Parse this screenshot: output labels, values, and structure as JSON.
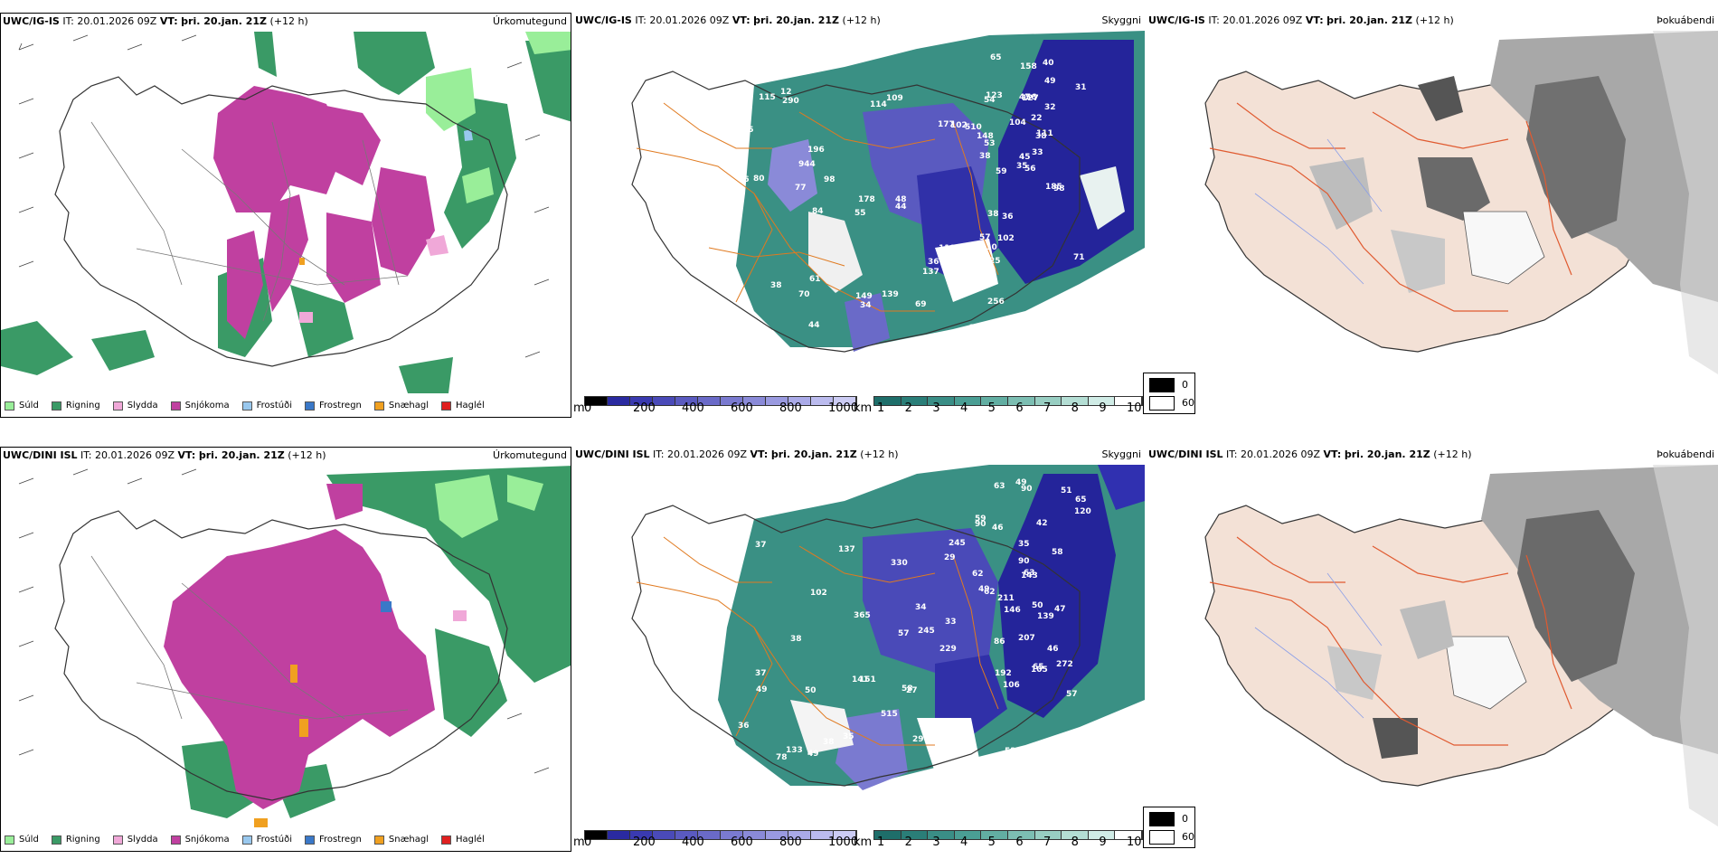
{
  "rows": [
    {
      "model_label": "UWC/IG-IS",
      "it_text": "IT: 20.01.2026 09Z",
      "vt_label": "VT:",
      "vt_text": "þri. 20.jan. 21Z",
      "lead_text": "(+12 h)",
      "panel_titles": [
        "Úrkomutegund",
        "Skyggni",
        "Þokuábendi"
      ],
      "visibility_labels": [
        "56",
        "54",
        "45",
        "57",
        "38",
        "36",
        "40",
        "56",
        "49",
        "33",
        "65",
        "71",
        "53",
        "31",
        "35",
        "32",
        "25",
        "47",
        "22",
        "38",
        "104",
        "110",
        "102",
        "127",
        "111",
        "98",
        "123",
        "158",
        "148",
        "185",
        "59",
        "55",
        "149",
        "178",
        "196",
        "177",
        "61",
        "216",
        "256",
        "119",
        "109",
        "98",
        "77",
        "137",
        "44",
        "46",
        "48",
        "42",
        "34",
        "44",
        "38",
        "38",
        "55",
        "36",
        "69",
        "70",
        "290",
        "115",
        "139",
        "510",
        "114",
        "84",
        "80",
        "944",
        "102",
        "12"
      ]
    },
    {
      "model_label": "UWC/DINI ISL",
      "it_text": "IT: 20.01.2026 09Z",
      "vt_label": "VT:",
      "vt_text": "þri. 20.jan. 21Z",
      "lead_text": "(+12 h)",
      "panel_titles": [
        "Úrkomutegund",
        "Skyggni",
        "Þokuábendi"
      ],
      "visibility_labels": [
        "62",
        "90",
        "58",
        "65",
        "59",
        "57",
        "62",
        "42",
        "35",
        "51",
        "63",
        "47",
        "49",
        "90",
        "46",
        "86",
        "65",
        "49",
        "50",
        "207",
        "46",
        "272",
        "120",
        "90",
        "192",
        "143",
        "139",
        "63",
        "106",
        "105",
        "37",
        "53",
        "57",
        "78",
        "49",
        "49",
        "33",
        "37",
        "38",
        "102",
        "515",
        "245",
        "527",
        "146",
        "151",
        "50",
        "29",
        "36",
        "35",
        "38",
        "34",
        "80",
        "27",
        "229",
        "290",
        "137",
        "58",
        "365",
        "245",
        "330",
        "141",
        "133",
        "211"
      ]
    }
  ],
  "precip_legend": [
    {
      "label": "Súld",
      "color": "#99ee99"
    },
    {
      "label": "Rigning",
      "color": "#3a9a66"
    },
    {
      "label": "Slydda",
      "color": "#f0a8d8"
    },
    {
      "label": "Snjókoma",
      "color": "#c040a0"
    },
    {
      "label": "Frostúði",
      "color": "#99c8ee"
    },
    {
      "label": "Frostregn",
      "color": "#3a78c8"
    },
    {
      "label": "Snæhagl",
      "color": "#f0a020"
    },
    {
      "label": "Haglél",
      "color": "#e02020"
    }
  ],
  "ceiling_colorbar": {
    "unit": "m",
    "ticks": [
      "0",
      "200",
      "400",
      "600",
      "800",
      "1000"
    ],
    "colors": [
      "#000000",
      "#2a2aa0",
      "#3a3ab0",
      "#4a4ab8",
      "#5a5ac0",
      "#6a6ac8",
      "#7a7ad0",
      "#8a8ad8",
      "#9a9ae0",
      "#aaaae8",
      "#bbbbee",
      "#ccccf4"
    ]
  },
  "visibility_colorbar": {
    "unit": "km",
    "ticks": [
      "1",
      "2",
      "3",
      "4",
      "5",
      "6",
      "7",
      "8",
      "9",
      "10"
    ],
    "colors": [
      "#1e6e6a",
      "#2a7e78",
      "#3a8e86",
      "#4a9e94",
      "#62aea2",
      "#7cbeb2",
      "#98cec2",
      "#b4ded4",
      "#d0ece6",
      "#ffffff"
    ]
  },
  "fog_legend": {
    "values": [
      "0",
      "60"
    ],
    "colors": [
      "#000000",
      "#ffffff"
    ]
  }
}
